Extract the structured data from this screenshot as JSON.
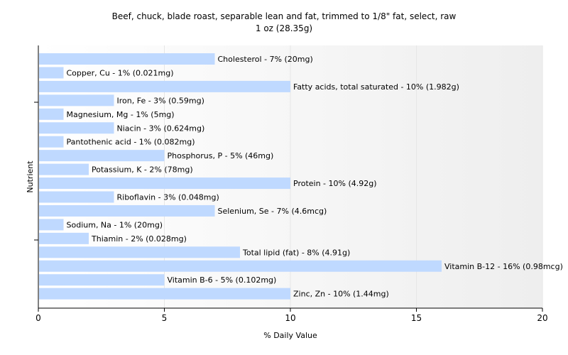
{
  "chart_data": {
    "type": "bar",
    "orientation": "horizontal",
    "title": "Beef, chuck, blade roast, separable lean and fat, trimmed to 1/8\" fat, select, raw",
    "subtitle": "1 oz (28.35g)",
    "xlabel": "% Daily Value",
    "ylabel": "Nutrient",
    "xlim": [
      0,
      20
    ],
    "xticks": [
      0,
      5,
      10,
      15,
      20
    ],
    "grid": true,
    "bar_color": "#bfd9ff",
    "categories": [
      "Cholesterol",
      "Copper, Cu",
      "Fatty acids, total saturated",
      "Iron, Fe",
      "Magnesium, Mg",
      "Niacin",
      "Pantothenic acid",
      "Phosphorus, P",
      "Potassium, K",
      "Protein",
      "Riboflavin",
      "Selenium, Se",
      "Sodium, Na",
      "Thiamin",
      "Total lipid (fat)",
      "Vitamin B-12",
      "Vitamin B-6",
      "Zinc, Zn"
    ],
    "values": [
      7,
      1,
      10,
      3,
      1,
      3,
      1,
      5,
      2,
      10,
      3,
      7,
      1,
      2,
      8,
      16,
      5,
      10
    ],
    "labels": [
      "Cholesterol - 7% (20mg)",
      "Copper, Cu - 1% (0.021mg)",
      "Fatty acids, total saturated - 10% (1.982g)",
      "Iron, Fe - 3% (0.59mg)",
      "Magnesium, Mg - 1% (5mg)",
      "Niacin - 3% (0.624mg)",
      "Pantothenic acid - 1% (0.082mg)",
      "Phosphorus, P - 5% (46mg)",
      "Potassium, K - 2% (78mg)",
      "Protein - 10% (4.92g)",
      "Riboflavin - 3% (0.048mg)",
      "Selenium, Se - 7% (4.6mcg)",
      "Sodium, Na - 1% (20mg)",
      "Thiamin - 2% (0.028mg)",
      "Total lipid (fat) - 8% (4.91g)",
      "Vitamin B-12 - 16% (0.98mcg)",
      "Vitamin B-6 - 5% (0.102mg)",
      "Zinc, Zn - 10% (1.44mg)"
    ]
  }
}
